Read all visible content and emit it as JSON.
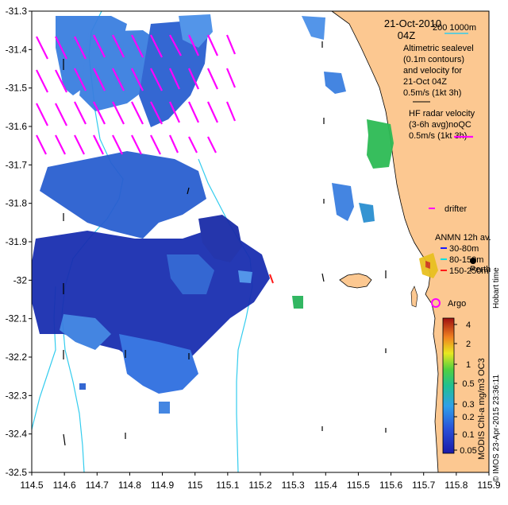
{
  "map": {
    "date_line": "21-Oct-2010",
    "time_line": "04Z",
    "scale_label": "200  1000m",
    "altimetry_title": [
      "Altimetric sealevel",
      "(0.1m contours)",
      "and velocity for",
      "21-Oct 04Z",
      "0.5m/s (1kt 3h)"
    ],
    "hf_title": [
      "HF radar velocity",
      "(3-6h avg)noQC",
      "0.5m/s (1kt 3h)"
    ],
    "drifter_label": "drifter",
    "anmn_title": "ANMN 12h av.",
    "anmn_items": [
      {
        "label": "30-80m",
        "color": "#1a1aff"
      },
      {
        "label": "80-150m",
        "color": "#00e0e0"
      },
      {
        "label": "150-250m",
        "color": "#ff1a1a"
      }
    ],
    "city_label": "Perth",
    "hobart_label": "Hobart time",
    "argo_label": "Argo",
    "credit": "© IMOS 23-Apr-2015 23:36:11",
    "colorbar_label": "MODIS Chl-a mg/m3 OC3",
    "colorbar_ticks": [
      "4",
      "2",
      "1",
      "0.5",
      "0.3",
      "0.2",
      "0.1",
      "0.05"
    ],
    "x_ticks": [
      "114.5",
      "114.6",
      "114.7",
      "114.8",
      "114.9",
      "115",
      "115.1",
      "115.2",
      "115.3",
      "115.4",
      "115.5",
      "115.6",
      "115.7",
      "115.8",
      "115.9"
    ],
    "y_ticks": [
      "-31.3",
      "-31.4",
      "-31.5",
      "-31.6",
      "-31.7",
      "-31.8",
      "-31.9",
      "-32",
      "-32.1",
      "-32.2",
      "-32.3",
      "-32.4",
      "-32.5"
    ],
    "colors": {
      "land": "#fcc891",
      "chl_low": "#1a1aaa",
      "chl_mid": "#2d7fdc",
      "chl_high": "#28b45a",
      "hf_arrow": "#ff00ff",
      "isobath": "#33ccee"
    }
  }
}
